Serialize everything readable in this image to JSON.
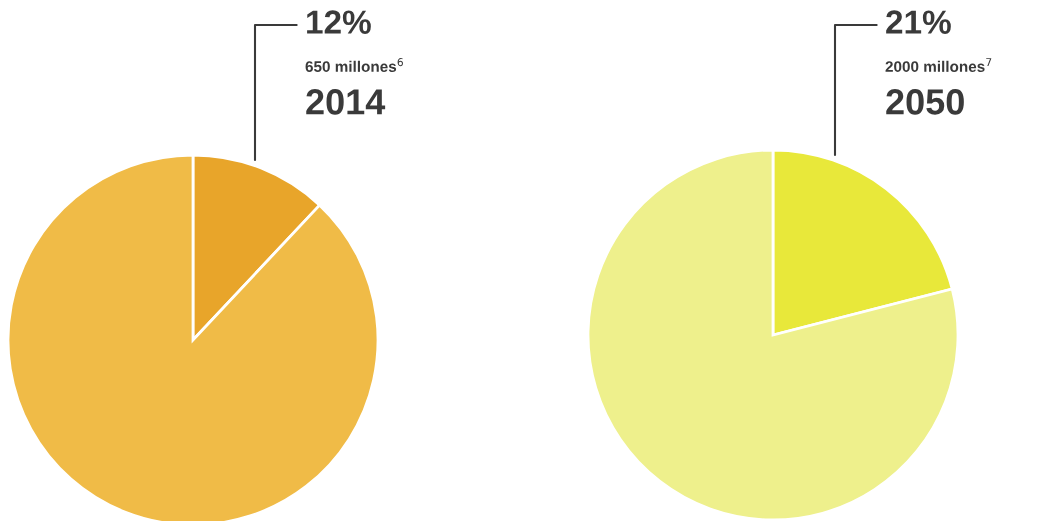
{
  "chart_data": [
    {
      "type": "pie",
      "categories": [
        null,
        null
      ],
      "values": [
        12,
        88
      ],
      "colors": [
        "#e8a52a",
        "#f0bb47"
      ],
      "annotations": [
        "12%",
        "650 millones$^{6}$",
        "2014"
      ]
    },
    {
      "type": "pie",
      "categories": [
        null,
        null
      ],
      "values": [
        21,
        79
      ],
      "colors": [
        "#e8e83a",
        "#eef08c"
      ],
      "annotations": [
        "21%",
        "2000 millones$^{7}$",
        "2050"
      ]
    }
  ]
}
